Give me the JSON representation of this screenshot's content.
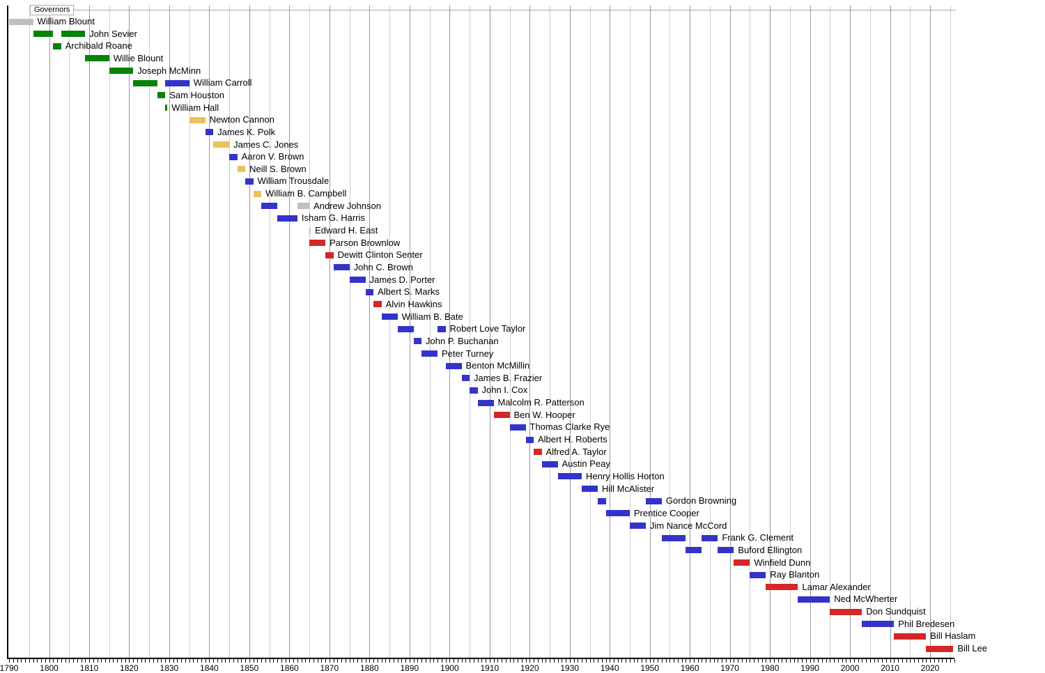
{
  "chart_data": {
    "type": "timeline",
    "title": "Governors",
    "x_axis": {
      "start": 1790,
      "end": 2026,
      "minor_tick_step": 1,
      "gridline_step": 5,
      "decade_labels": [
        "1790",
        "1800",
        "1810",
        "1820",
        "1830",
        "1840",
        "1850",
        "1860",
        "1870",
        "1880",
        "1890",
        "1900",
        "1910",
        "1920",
        "1930",
        "1940",
        "1950",
        "1960",
        "1970",
        "1980",
        "1990",
        "2000",
        "2010",
        "2020"
      ]
    },
    "colors": {
      "gray": "#bfbfbf",
      "green": "#078307",
      "blue": "#3333cc",
      "yellow": "#e8c35c",
      "red": "#d42727"
    },
    "governors": [
      {
        "name": "William Blount",
        "terms": [
          [
            1790,
            1796,
            "gray"
          ]
        ]
      },
      {
        "name": "John Sevier",
        "terms": [
          [
            1796,
            1801,
            "green"
          ],
          [
            1803,
            1809,
            "green"
          ]
        ]
      },
      {
        "name": "Archibald Roane",
        "terms": [
          [
            1801,
            1803,
            "green"
          ]
        ]
      },
      {
        "name": "Willie Blount",
        "terms": [
          [
            1809,
            1815,
            "green"
          ]
        ]
      },
      {
        "name": "Joseph McMinn",
        "terms": [
          [
            1815,
            1821,
            "green"
          ]
        ]
      },
      {
        "name": "William Carroll",
        "terms": [
          [
            1821,
            1827,
            "green"
          ],
          [
            1829,
            1835,
            "blue"
          ]
        ]
      },
      {
        "name": "Sam Houston",
        "terms": [
          [
            1827,
            1829,
            "green"
          ]
        ]
      },
      {
        "name": "William Hall",
        "terms": [
          [
            1829,
            1829.55,
            "green"
          ]
        ]
      },
      {
        "name": "Newton Cannon",
        "terms": [
          [
            1835,
            1839,
            "yellow"
          ]
        ]
      },
      {
        "name": "James K. Polk",
        "terms": [
          [
            1839,
            1841,
            "blue"
          ]
        ]
      },
      {
        "name": "James C. Jones",
        "terms": [
          [
            1841,
            1845,
            "yellow"
          ]
        ]
      },
      {
        "name": "Aaron V. Brown",
        "terms": [
          [
            1845,
            1847,
            "blue"
          ]
        ]
      },
      {
        "name": "Neill S. Brown",
        "terms": [
          [
            1847,
            1849,
            "yellow"
          ]
        ]
      },
      {
        "name": "William Trousdale",
        "terms": [
          [
            1849,
            1851,
            "blue"
          ]
        ]
      },
      {
        "name": "William B. Campbell",
        "terms": [
          [
            1851,
            1853,
            "yellow"
          ]
        ]
      },
      {
        "name": "Andrew Johnson",
        "terms": [
          [
            1853,
            1857,
            "blue"
          ],
          [
            1862,
            1865,
            "gray"
          ]
        ]
      },
      {
        "name": "Isham G. Harris",
        "terms": [
          [
            1857,
            1862,
            "blue"
          ]
        ]
      },
      {
        "name": "Edward H. East",
        "terms": [
          [
            1865,
            1865.35,
            "gray"
          ]
        ]
      },
      {
        "name": "Parson Brownlow",
        "terms": [
          [
            1865,
            1869,
            "red"
          ]
        ]
      },
      {
        "name": "Dewitt Clinton Senter",
        "terms": [
          [
            1869,
            1871,
            "red"
          ]
        ]
      },
      {
        "name": "John C. Brown",
        "terms": [
          [
            1871,
            1875,
            "blue"
          ]
        ]
      },
      {
        "name": "James D. Porter",
        "terms": [
          [
            1875,
            1879,
            "blue"
          ]
        ]
      },
      {
        "name": "Albert S. Marks",
        "terms": [
          [
            1879,
            1881,
            "blue"
          ]
        ]
      },
      {
        "name": "Alvin Hawkins",
        "terms": [
          [
            1881,
            1883,
            "red"
          ]
        ]
      },
      {
        "name": "William B. Bate",
        "terms": [
          [
            1883,
            1887,
            "blue"
          ]
        ]
      },
      {
        "name": "Robert Love Taylor",
        "terms": [
          [
            1887,
            1891,
            "blue"
          ],
          [
            1897,
            1899,
            "blue"
          ]
        ]
      },
      {
        "name": "John P. Buchanan",
        "terms": [
          [
            1891,
            1893,
            "blue"
          ]
        ]
      },
      {
        "name": "Peter Turney",
        "terms": [
          [
            1893,
            1897,
            "blue"
          ]
        ]
      },
      {
        "name": "Benton McMillin",
        "terms": [
          [
            1899,
            1903,
            "blue"
          ]
        ]
      },
      {
        "name": "James B. Frazier",
        "terms": [
          [
            1903,
            1905,
            "blue"
          ]
        ]
      },
      {
        "name": "John I. Cox",
        "terms": [
          [
            1905,
            1907,
            "blue"
          ]
        ]
      },
      {
        "name": "Malcolm R. Patterson",
        "terms": [
          [
            1907,
            1911,
            "blue"
          ]
        ]
      },
      {
        "name": "Ben W. Hooper",
        "terms": [
          [
            1911,
            1915,
            "red"
          ]
        ]
      },
      {
        "name": "Thomas Clarke Rye",
        "terms": [
          [
            1915,
            1919,
            "blue"
          ]
        ]
      },
      {
        "name": "Albert H. Roberts",
        "terms": [
          [
            1919,
            1921,
            "blue"
          ]
        ]
      },
      {
        "name": "Alfred A. Taylor",
        "terms": [
          [
            1921,
            1923,
            "red"
          ]
        ]
      },
      {
        "name": "Austin Peay",
        "terms": [
          [
            1923,
            1927,
            "blue"
          ]
        ]
      },
      {
        "name": "Henry Hollis Horton",
        "terms": [
          [
            1927,
            1933,
            "blue"
          ]
        ]
      },
      {
        "name": "Hill McAlister",
        "terms": [
          [
            1933,
            1937,
            "blue"
          ]
        ]
      },
      {
        "name": "Gordon Browning",
        "terms": [
          [
            1937,
            1939,
            "blue"
          ],
          [
            1949,
            1953,
            "blue"
          ]
        ]
      },
      {
        "name": "Prentice Cooper",
        "terms": [
          [
            1939,
            1945,
            "blue"
          ]
        ]
      },
      {
        "name": "Jim Nance McCord",
        "terms": [
          [
            1945,
            1949,
            "blue"
          ]
        ]
      },
      {
        "name": "Frank G. Clement",
        "terms": [
          [
            1953,
            1959,
            "blue"
          ],
          [
            1963,
            1967,
            "blue"
          ]
        ]
      },
      {
        "name": "Buford Ellington",
        "terms": [
          [
            1959,
            1963,
            "blue"
          ],
          [
            1967,
            1971,
            "blue"
          ]
        ]
      },
      {
        "name": "Winfield Dunn",
        "terms": [
          [
            1971,
            1975,
            "red"
          ]
        ]
      },
      {
        "name": "Ray Blanton",
        "terms": [
          [
            1975,
            1979,
            "blue"
          ]
        ]
      },
      {
        "name": "Lamar Alexander",
        "terms": [
          [
            1979,
            1987,
            "red"
          ]
        ]
      },
      {
        "name": "Ned McWherter",
        "terms": [
          [
            1987,
            1995,
            "blue"
          ]
        ]
      },
      {
        "name": "Don Sundquist",
        "terms": [
          [
            1995,
            2003,
            "red"
          ]
        ]
      },
      {
        "name": "Phil Bredesen",
        "terms": [
          [
            2003,
            2011,
            "blue"
          ]
        ]
      },
      {
        "name": "Bill Haslam",
        "terms": [
          [
            2011,
            2019,
            "red"
          ]
        ]
      },
      {
        "name": "Bill Lee",
        "terms": [
          [
            2019,
            2025.8,
            "red"
          ]
        ]
      }
    ]
  }
}
